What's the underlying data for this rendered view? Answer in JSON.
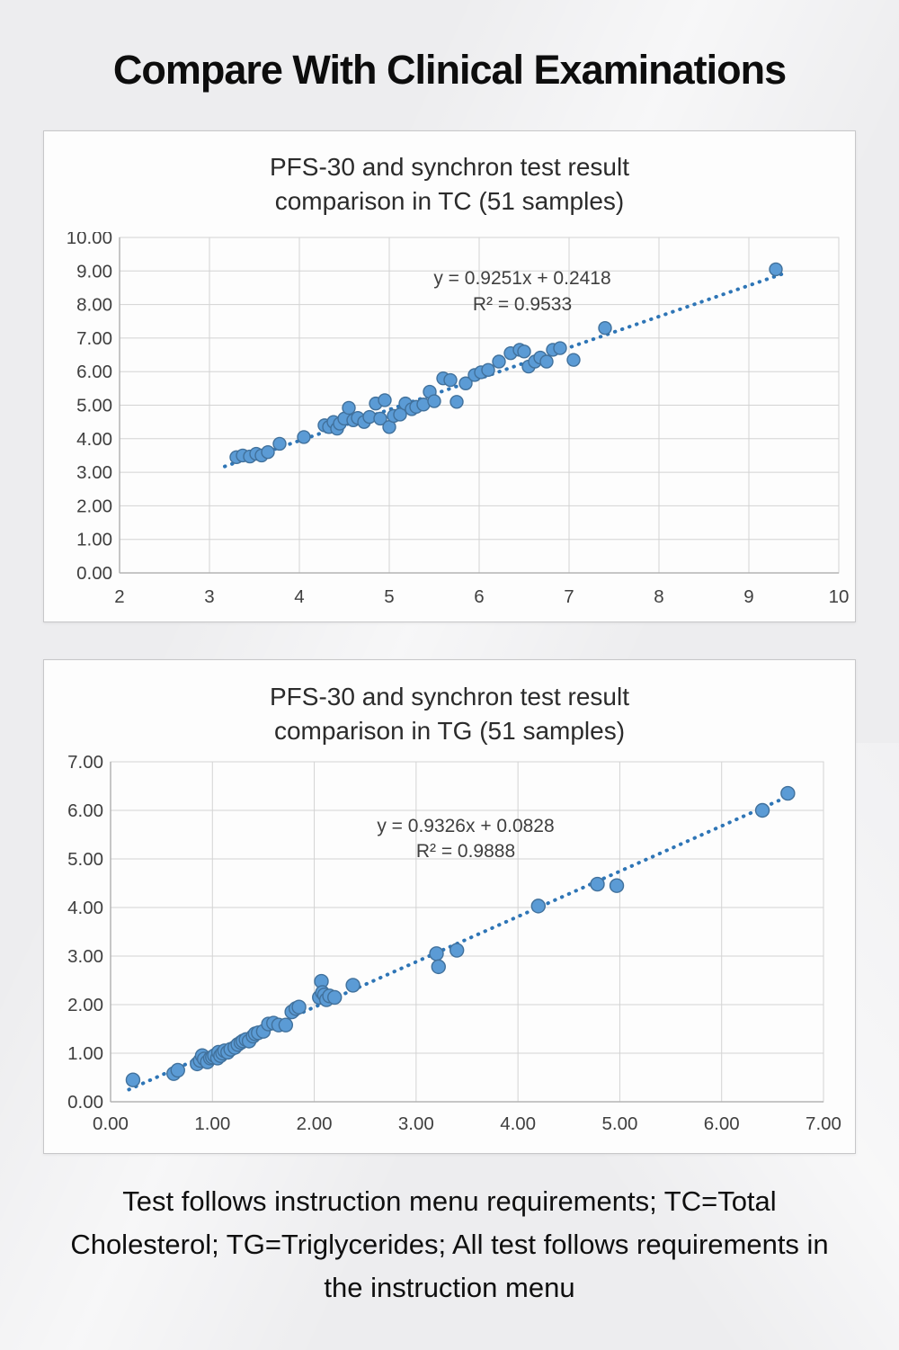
{
  "page": {
    "title": "Compare With Clinical Examinations",
    "caption": "Test follows instruction menu requirements; TC=Total Cholesterol; TG=Triglycerides; All test follows requirements in the instruction menu"
  },
  "colors": {
    "background": "#ededef",
    "panel_background": "#fdfdfd",
    "panel_border": "#c7c7c9",
    "grid": "#d3d3d3",
    "axis_line": "#b3b3b3",
    "axis_text": "#3f3f3f",
    "point_fill": "#5b9bd5",
    "point_stroke": "#41719c",
    "trendline": "#2e75b6",
    "annotation_text": "#3f3f3f"
  },
  "chart_data": [
    {
      "type": "scatter",
      "title_lines": [
        "PFS-30 and synchron test result",
        "comparison in TC (51 samples)"
      ],
      "equation": "y = 0.9251x + 0.2418",
      "r_squared": "R² = 0.9533",
      "xlim": [
        2,
        10
      ],
      "ylim": [
        0,
        10
      ],
      "xticks": [
        "2",
        "3",
        "4",
        "5",
        "6",
        "7",
        "8",
        "9",
        "10"
      ],
      "yticks": [
        "0.00",
        "1.00",
        "2.00",
        "3.00",
        "4.00",
        "5.00",
        "6.00",
        "7.00",
        "8.00",
        "9.00",
        "10.00"
      ],
      "grid": true,
      "legend": "none",
      "trend": {
        "slope": 0.9251,
        "intercept": 0.2418,
        "x_start": 3.17,
        "x_end": 9.38,
        "style": "dotted"
      },
      "points": [
        [
          3.3,
          3.45
        ],
        [
          3.37,
          3.5
        ],
        [
          3.45,
          3.47
        ],
        [
          3.52,
          3.55
        ],
        [
          3.58,
          3.5
        ],
        [
          3.65,
          3.6
        ],
        [
          3.78,
          3.85
        ],
        [
          4.05,
          4.05
        ],
        [
          4.28,
          4.4
        ],
        [
          4.33,
          4.35
        ],
        [
          4.38,
          4.5
        ],
        [
          4.42,
          4.3
        ],
        [
          4.45,
          4.45
        ],
        [
          4.5,
          4.6
        ],
        [
          4.55,
          4.92
        ],
        [
          4.6,
          4.55
        ],
        [
          4.65,
          4.62
        ],
        [
          4.72,
          4.5
        ],
        [
          4.78,
          4.65
        ],
        [
          4.85,
          5.05
        ],
        [
          4.9,
          4.6
        ],
        [
          4.95,
          5.15
        ],
        [
          5.0,
          4.35
        ],
        [
          5.05,
          4.68
        ],
        [
          5.12,
          4.72
        ],
        [
          5.18,
          5.05
        ],
        [
          5.25,
          4.88
        ],
        [
          5.3,
          4.95
        ],
        [
          5.38,
          5.02
        ],
        [
          5.45,
          5.4
        ],
        [
          5.5,
          5.12
        ],
        [
          5.6,
          5.8
        ],
        [
          5.68,
          5.75
        ],
        [
          5.75,
          5.1
        ],
        [
          5.85,
          5.65
        ],
        [
          5.95,
          5.9
        ],
        [
          6.02,
          5.98
        ],
        [
          6.1,
          6.05
        ],
        [
          6.22,
          6.3
        ],
        [
          6.35,
          6.55
        ],
        [
          6.45,
          6.65
        ],
        [
          6.5,
          6.6
        ],
        [
          6.55,
          6.15
        ],
        [
          6.62,
          6.3
        ],
        [
          6.68,
          6.42
        ],
        [
          6.75,
          6.3
        ],
        [
          6.82,
          6.65
        ],
        [
          6.9,
          6.7
        ],
        [
          7.05,
          6.35
        ],
        [
          7.4,
          7.3
        ],
        [
          9.3,
          9.05
        ]
      ]
    },
    {
      "type": "scatter",
      "title_lines": [
        "PFS-30 and synchron test result",
        "comparison in TG (51 samples)"
      ],
      "equation": "y = 0.9326x + 0.0828",
      "r_squared": "R² = 0.9888",
      "xlim": [
        0,
        7
      ],
      "ylim": [
        0,
        7
      ],
      "xticks": [
        "0.00",
        "1.00",
        "2.00",
        "3.00",
        "4.00",
        "5.00",
        "6.00",
        "7.00"
      ],
      "yticks": [
        "0.00",
        "1.00",
        "2.00",
        "3.00",
        "4.00",
        "5.00",
        "6.00",
        "7.00"
      ],
      "grid": true,
      "legend": "none",
      "trend": {
        "slope": 0.9326,
        "intercept": 0.0828,
        "x_start": 0.18,
        "x_end": 6.73,
        "style": "dotted"
      },
      "points": [
        [
          0.22,
          0.45
        ],
        [
          0.62,
          0.58
        ],
        [
          0.66,
          0.65
        ],
        [
          0.85,
          0.78
        ],
        [
          0.88,
          0.85
        ],
        [
          0.9,
          0.95
        ],
        [
          0.92,
          0.88
        ],
        [
          0.95,
          0.82
        ],
        [
          0.98,
          0.9
        ],
        [
          1.0,
          0.92
        ],
        [
          1.02,
          0.95
        ],
        [
          1.05,
          0.9
        ],
        [
          1.06,
          1.02
        ],
        [
          1.08,
          0.95
        ],
        [
          1.1,
          1.0
        ],
        [
          1.12,
          1.05
        ],
        [
          1.15,
          1.02
        ],
        [
          1.18,
          1.08
        ],
        [
          1.22,
          1.12
        ],
        [
          1.25,
          1.18
        ],
        [
          1.28,
          1.22
        ],
        [
          1.3,
          1.25
        ],
        [
          1.33,
          1.28
        ],
        [
          1.36,
          1.25
        ],
        [
          1.4,
          1.35
        ],
        [
          1.42,
          1.4
        ],
        [
          1.45,
          1.42
        ],
        [
          1.5,
          1.45
        ],
        [
          1.55,
          1.6
        ],
        [
          1.6,
          1.62
        ],
        [
          1.65,
          1.58
        ],
        [
          1.72,
          1.58
        ],
        [
          1.78,
          1.85
        ],
        [
          1.82,
          1.92
        ],
        [
          1.85,
          1.95
        ],
        [
          2.05,
          2.15
        ],
        [
          2.07,
          2.48
        ],
        [
          2.08,
          2.25
        ],
        [
          2.1,
          2.2
        ],
        [
          2.12,
          2.1
        ],
        [
          2.15,
          2.18
        ],
        [
          2.2,
          2.15
        ],
        [
          2.38,
          2.4
        ],
        [
          3.2,
          3.05
        ],
        [
          3.22,
          2.78
        ],
        [
          3.4,
          3.12
        ],
        [
          4.2,
          4.03
        ],
        [
          4.78,
          4.48
        ],
        [
          4.97,
          4.45
        ],
        [
          6.4,
          6.0
        ],
        [
          6.65,
          6.35
        ]
      ]
    }
  ]
}
